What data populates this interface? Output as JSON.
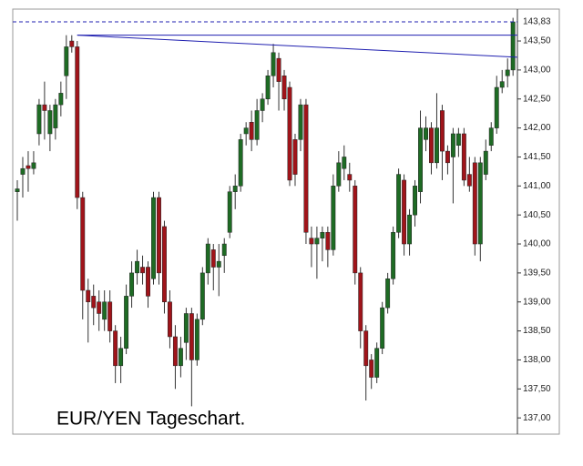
{
  "chart_data": {
    "type": "candlestick",
    "title": "EUR/YEN Tageschart.",
    "ylim": [
      136.72,
      144.05
    ],
    "yticks": [
      {
        "value": 137.0,
        "label": "137,00"
      },
      {
        "value": 137.5,
        "label": "137,50"
      },
      {
        "value": 138.0,
        "label": "138,00"
      },
      {
        "value": 138.5,
        "label": "138,50"
      },
      {
        "value": 139.0,
        "label": "139,00"
      },
      {
        "value": 139.5,
        "label": "139,50"
      },
      {
        "value": 140.0,
        "label": "140,00"
      },
      {
        "value": 140.5,
        "label": "140,50"
      },
      {
        "value": 141.0,
        "label": "141,00"
      },
      {
        "value": 141.5,
        "label": "141,50"
      },
      {
        "value": 142.0,
        "label": "142,00"
      },
      {
        "value": 142.5,
        "label": "142,50"
      },
      {
        "value": 143.0,
        "label": "143,00"
      },
      {
        "value": 143.5,
        "label": "143,50"
      }
    ],
    "up_color": "#1e6b24",
    "down_color": "#a0141a",
    "series": [
      {
        "open": [
          140.9,
          141.2,
          141.35,
          141.3,
          141.9,
          142.4,
          141.9,
          142.0,
          142.4,
          142.9,
          143.5,
          143.4,
          140.8,
          139.2,
          139.1,
          139.0,
          138.7,
          139.0,
          138.5,
          137.9,
          138.2,
          139.1,
          139.5,
          139.6,
          139.6,
          139.4,
          140.8,
          140.3,
          139.0,
          138.4,
          137.9,
          138.3,
          138.8,
          138.0,
          138.7,
          139.5,
          139.9,
          139.6,
          139.8,
          140.2,
          140.9,
          141.0,
          141.9,
          142.1,
          141.8,
          142.3,
          142.5,
          142.9,
          143.2,
          142.9,
          142.7,
          141.8,
          141.8,
          142.4,
          140.1,
          140.0,
          140.1,
          140.2,
          139.9,
          141.0,
          141.3,
          141.2,
          141.0,
          139.5,
          138.5,
          138.0,
          137.7,
          138.2,
          138.9,
          139.4,
          140.2,
          141.1,
          140.0,
          140.5,
          140.9,
          141.8,
          142.0,
          141.4,
          142.3,
          141.6,
          141.5,
          141.7,
          141.9,
          141.2,
          141.4,
          140.0,
          141.2,
          141.7,
          142.0,
          142.7,
          142.9,
          143.0
        ],
        "high": [
          141.1,
          141.5,
          141.6,
          141.6,
          142.5,
          142.8,
          142.4,
          142.5,
          142.8,
          143.6,
          143.6,
          143.5,
          140.9,
          139.4,
          139.3,
          139.2,
          139.2,
          139.2,
          138.6,
          138.4,
          139.3,
          139.7,
          139.9,
          139.8,
          139.7,
          140.9,
          140.9,
          140.4,
          139.2,
          138.6,
          138.4,
          138.9,
          138.9,
          138.8,
          139.6,
          140.1,
          140.0,
          140.0,
          140.1,
          141.0,
          141.2,
          141.9,
          142.1,
          142.3,
          142.5,
          142.6,
          143.0,
          143.45,
          143.3,
          143.0,
          142.8,
          141.9,
          142.5,
          142.5,
          140.3,
          140.3,
          140.3,
          140.3,
          141.2,
          141.6,
          141.7,
          141.4,
          141.1,
          139.6,
          138.6,
          138.1,
          138.3,
          139.0,
          139.5,
          140.3,
          141.3,
          141.2,
          140.6,
          141.1,
          142.3,
          142.2,
          142.1,
          142.6,
          142.4,
          141.7,
          142.0,
          142.0,
          142.0,
          141.5,
          141.5,
          141.5,
          141.8,
          142.1,
          142.9,
          143.0,
          143.2,
          143.9
        ],
        "low": [
          140.4,
          140.8,
          140.9,
          141.2,
          141.7,
          141.8,
          141.6,
          141.8,
          142.2,
          142.5,
          143.3,
          140.6,
          138.7,
          138.3,
          138.6,
          138.5,
          138.5,
          138.3,
          137.6,
          137.6,
          138.1,
          138.9,
          139.3,
          139.3,
          138.9,
          139.3,
          139.3,
          138.8,
          138.2,
          137.5,
          137.7,
          138.0,
          137.2,
          137.9,
          138.6,
          139.3,
          139.2,
          139.1,
          139.5,
          140.1,
          140.6,
          140.9,
          141.7,
          141.6,
          141.7,
          142.1,
          142.4,
          142.7,
          142.3,
          142.3,
          141.0,
          141.0,
          141.6,
          140.0,
          139.6,
          139.4,
          139.7,
          139.6,
          139.8,
          140.9,
          141.1,
          140.9,
          139.3,
          138.2,
          137.3,
          137.5,
          137.6,
          138.1,
          138.8,
          139.3,
          140.1,
          139.8,
          139.8,
          140.3,
          140.7,
          141.6,
          141.2,
          141.3,
          141.1,
          141.2,
          140.7,
          141.5,
          141.0,
          140.9,
          139.8,
          139.7,
          141.1,
          141.6,
          141.9,
          142.6,
          142.7,
          142.9
        ],
        "close": [
          140.95,
          141.3,
          141.3,
          141.4,
          142.4,
          142.3,
          142.3,
          142.4,
          142.6,
          143.4,
          143.4,
          140.8,
          139.2,
          139.0,
          138.9,
          138.8,
          139.0,
          138.5,
          137.9,
          138.2,
          139.1,
          139.5,
          139.7,
          139.5,
          139.1,
          140.8,
          139.5,
          139.0,
          138.4,
          137.9,
          138.2,
          138.8,
          138.0,
          138.7,
          139.5,
          140.0,
          139.6,
          139.7,
          140.0,
          140.9,
          141.0,
          141.8,
          142.0,
          141.8,
          142.3,
          142.5,
          142.9,
          143.3,
          142.8,
          142.5,
          141.1,
          141.2,
          142.4,
          140.2,
          140.0,
          140.1,
          140.2,
          139.9,
          141.0,
          141.4,
          141.5,
          141.1,
          139.5,
          138.5,
          137.9,
          137.7,
          138.2,
          138.9,
          139.4,
          140.2,
          141.2,
          140.0,
          140.5,
          141.0,
          142.0,
          142.0,
          141.4,
          142.0,
          141.6,
          141.4,
          141.9,
          141.9,
          141.1,
          141.0,
          140.0,
          141.4,
          141.6,
          142.0,
          142.7,
          142.8,
          143.0,
          143.83
        ]
      }
    ],
    "lines": [
      {
        "kind": "horizontal",
        "value": 143.83,
        "label": "143,83",
        "color": "#1f1fb0",
        "dashed": true
      },
      {
        "kind": "horizontal",
        "value": 143.6,
        "from_index": 11,
        "color": "#1f1fb0",
        "dashed": false
      },
      {
        "kind": "trend",
        "from_index": 11,
        "from_value": 143.6,
        "to_index": 92,
        "to_value": 143.22,
        "color": "#1f1fb0",
        "dashed": false
      }
    ]
  }
}
